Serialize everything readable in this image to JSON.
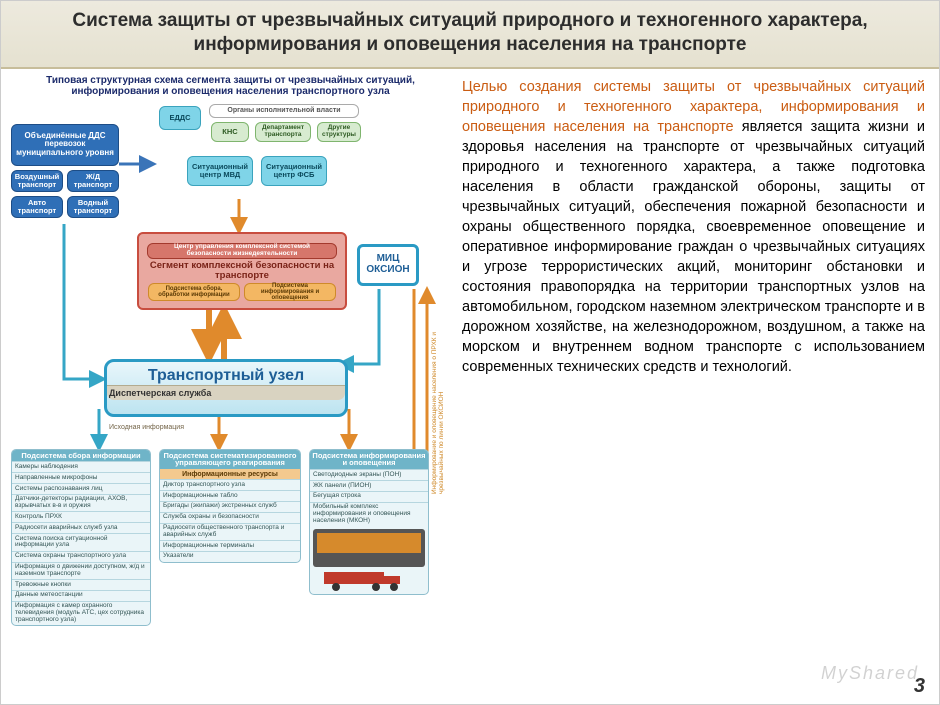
{
  "title": "Система защиты от чрезвычайных ситуаций природного и техногенного характера, информирования и оповещения населения на транспорте",
  "page_number": "3",
  "watermark": "MyShared",
  "right_text": {
    "highlight": "Целью создания системы защиты от чрезвычайных ситуаций природного и техногенного характера, информирования и оповещения населения на транспорте ",
    "body": "является защита жизни и здоровья населения на транспорте от чрезвычайных ситуаций природного и техногенного характера, а также подготовка населения в области гражданской обороны, защиты от чрезвычайных ситуаций, обеспечения пожарной безопасности и охраны общественного порядка, своевременное оповещение и оперативное информирование граждан о чрезвычайных ситуациях и угрозе террористических акций, мониторинг обстановки и состояния правопорядка на территории транспортных узлов на автомобильном, городском наземном электрическом транспорте и в дорожном хозяйстве, на железнодорожном, воздушном, а также на морском и внутреннем водном транспорте с использованием современных технических средств и технологий."
  },
  "diagram": {
    "subtitle": "Типовая структурная схема сегмента защиты от чрезвычайных ситуаций, информирования и оповещения населения транспортного узла",
    "dds": {
      "main": "Объединённые ДДС перевозок муниципального уровня",
      "a": "Воздушный транспорт",
      "b": "Ж/Д транспорт",
      "c": "Авто транспорт",
      "d": "Водный транспорт"
    },
    "top": {
      "edds": "ЕДДС",
      "org": "Органы исполнительной власти",
      "knc": "КНС",
      "dep": "Департамент транспорта",
      "other": "Другие структуры",
      "sit_mvd": "Ситуационный центр МВД",
      "sit_fsb": "Ситуационный центр ФСБ"
    },
    "center": {
      "hdr": "Центр управления комплексной системой безопасности жизнедеятельности",
      "seg": "Сегмент комплексной безопасности на транспорте",
      "sub1": "Подсистема сбора, обработки информации",
      "sub2": "Подсистема информирования и оповещения"
    },
    "mic": "МИЦ ОКСИОН",
    "node": {
      "t": "Транспортный узел",
      "sub": "Диспетчерская служба"
    },
    "labels": {
      "src": "Исходная информация",
      "vert": "Информирование и оповещение населения о ПРХК и чрезвычайных по линии ОКСИОН"
    },
    "p1": {
      "h": "Подсистема сбора информации",
      "rows": [
        "Камеры наблюдения",
        "Направленные микрофоны",
        "Системы распознавания лиц",
        "Датчики-детекторы радиации, АХОВ, взрывчатых в-в и оружия",
        "Контроль ПРХК",
        "Радиосети аварийных служб узла",
        "Система поиска ситуационной информации узла",
        "Система охраны транспортного узла",
        "Информация о движении доступном, ж/д и наземном транспорте",
        "Тревожные кнопки",
        "Данные метеостанции",
        "Информация с камер охранного телевидения (модуль АТС, цех сотрудника транспортного узла)"
      ]
    },
    "p2": {
      "h": "Подсистема систематизированного управляющего реагирования",
      "s": "Информационные ресурсы",
      "rows": [
        "Диктор транспортного узла",
        "Информационные табло",
        "Бригады (экипажи) экстренных служб",
        "Служба охраны и безопасности",
        "Радиосети общественного транспорта и аварийных служб",
        "Информационные терминалы",
        "Указатели"
      ]
    },
    "p3": {
      "h": "Подсистема информирования и оповещения",
      "rows": [
        "Светодиодные экраны (ПОН)",
        "ЖК панели (ПИОН)",
        "Бегущая строка",
        "Мобильный комплекс информирования и оповещения населения (МКОН)"
      ]
    },
    "colors": {
      "blue": "#2f6fb7",
      "cyan": "#7fd4e8",
      "red": "#c84d3f",
      "orange": "#f3b763",
      "green": "#d7ebd0",
      "panel": "#6fb4c8",
      "arrow_o": "#e08a2c",
      "arrow_c": "#35a6c6",
      "arrow_b": "#3a74b8"
    }
  }
}
